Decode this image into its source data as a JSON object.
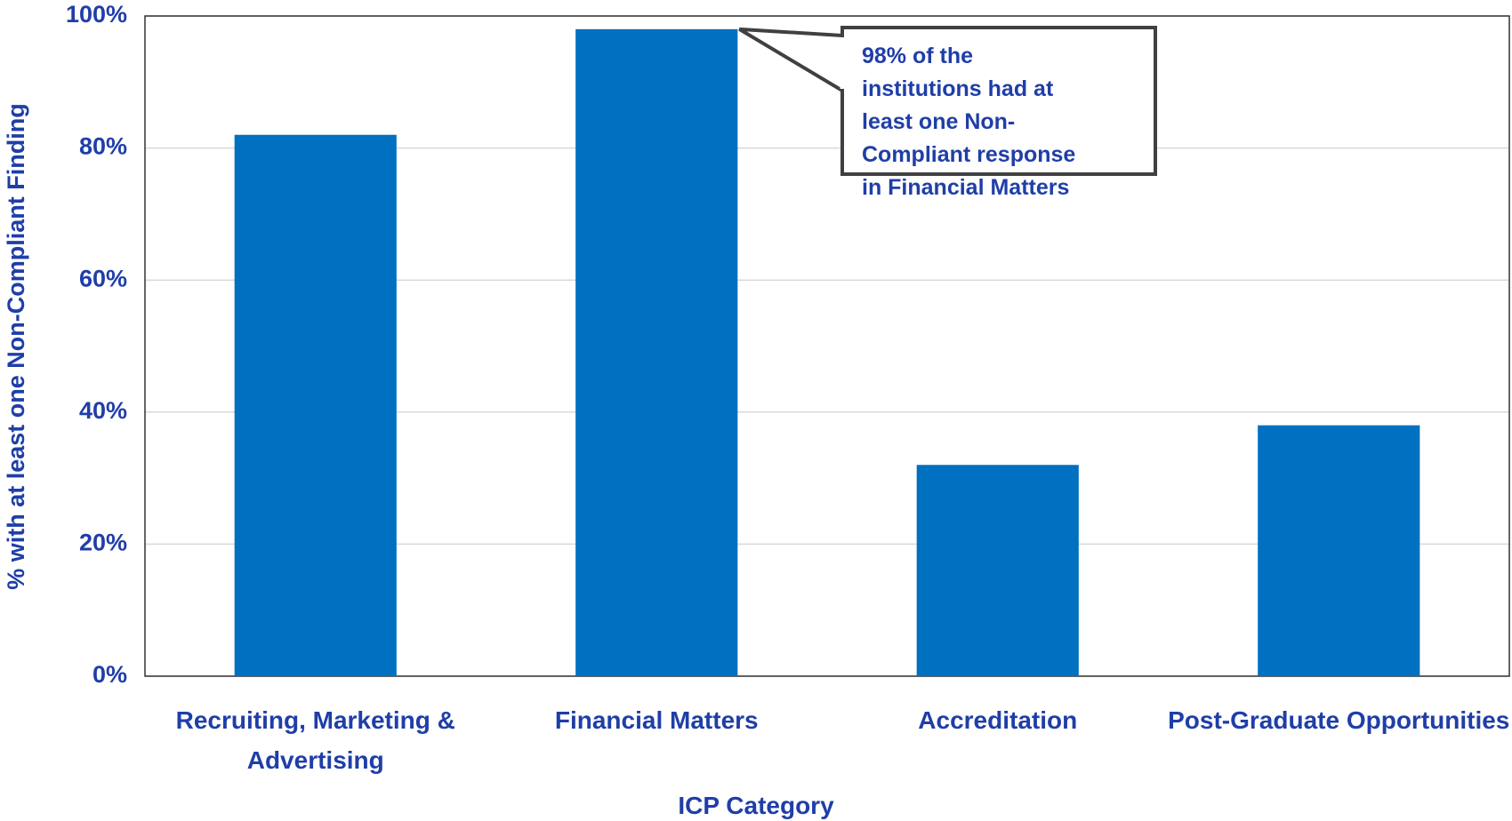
{
  "chart_data": {
    "type": "bar",
    "categories": [
      "Recruiting, Marketing & Advertising",
      "Financial Matters",
      "Accreditation",
      "Post-Graduate Opportunities"
    ],
    "values": [
      82,
      98,
      32,
      38
    ],
    "color": "#0070c0",
    "xlabel": "ICP Category",
    "ylabel": "% with at least one Non-Compliant Finding",
    "ylim": [
      0,
      100
    ],
    "yticks": [
      {
        "value": 0,
        "label": "0%"
      },
      {
        "value": 20,
        "label": "20%"
      },
      {
        "value": 40,
        "label": "40%"
      },
      {
        "value": 60,
        "label": "60%"
      },
      {
        "value": 80,
        "label": "80%"
      },
      {
        "value": 100,
        "label": "100%"
      }
    ],
    "grid": true,
    "annotation": "98% of the institutions had at least one Non-Compliant response in Financial Matters"
  }
}
